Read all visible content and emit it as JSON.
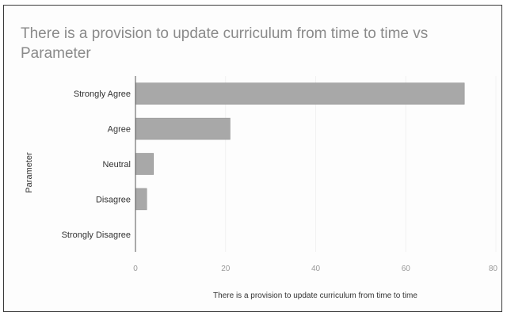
{
  "chart_data": {
    "type": "bar",
    "orientation": "horizontal",
    "title": "There is a provision to update curriculum from time to time  vs Parameter",
    "xlabel": "There is a provision to update curriculum from time to time",
    "ylabel": "Parameter",
    "categories": [
      "Strongly Agree",
      "Agree",
      "Neutral",
      "Disagree",
      "Strongly Disagree"
    ],
    "values": [
      73,
      21,
      4,
      2.5,
      0
    ],
    "xlim": [
      0,
      80
    ],
    "xticks": [
      "0",
      "20",
      "40",
      "60",
      "80"
    ],
    "grid": true,
    "legend": "none",
    "colors": {
      "bar": "#a8a8a8",
      "bar_edge": "#8c8c8c",
      "axis": "#555555",
      "grid": "#f2f2f2",
      "text": "#333333",
      "tick": "#9a9a9a",
      "title": "#8a8a8a"
    }
  }
}
